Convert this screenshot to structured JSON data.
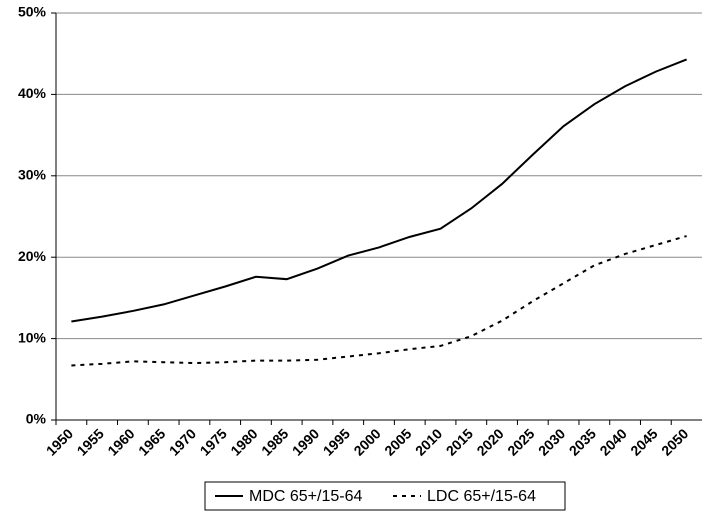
{
  "chart_data": {
    "type": "line",
    "categories": [
      "1950",
      "1955",
      "1960",
      "1965",
      "1970",
      "1975",
      "1980",
      "1985",
      "1990",
      "1995",
      "2000",
      "2005",
      "2010",
      "2015",
      "2020",
      "2025",
      "2030",
      "2035",
      "2040",
      "2045",
      "2050"
    ],
    "series": [
      {
        "name": "MDC 65+/15-64",
        "color": "#000000",
        "dash": "solid",
        "values": [
          12.1,
          12.7,
          13.4,
          14.2,
          15.3,
          16.4,
          17.6,
          17.3,
          18.6,
          20.2,
          21.2,
          22.5,
          23.5,
          26.0,
          29.0,
          32.6,
          36.1,
          38.8,
          41.0,
          42.8,
          44.3
        ]
      },
      {
        "name": "LDC 65+/15-64",
        "color": "#000000",
        "dash": "dashed",
        "values": [
          6.7,
          6.9,
          7.2,
          7.1,
          7.0,
          7.1,
          7.3,
          7.3,
          7.4,
          7.8,
          8.2,
          8.7,
          9.1,
          10.3,
          12.2,
          14.6,
          16.8,
          19.0,
          20.4,
          21.5,
          22.6
        ]
      }
    ],
    "ylim": [
      0,
      50
    ],
    "yticks": [
      {
        "value": 0,
        "label": "0%"
      },
      {
        "value": 10,
        "label": "10%"
      },
      {
        "value": 20,
        "label": "20%"
      },
      {
        "value": 30,
        "label": "30%"
      },
      {
        "value": 40,
        "label": "40%"
      },
      {
        "value": 50,
        "label": "50%"
      }
    ],
    "grid": true,
    "legend": "bottom"
  }
}
